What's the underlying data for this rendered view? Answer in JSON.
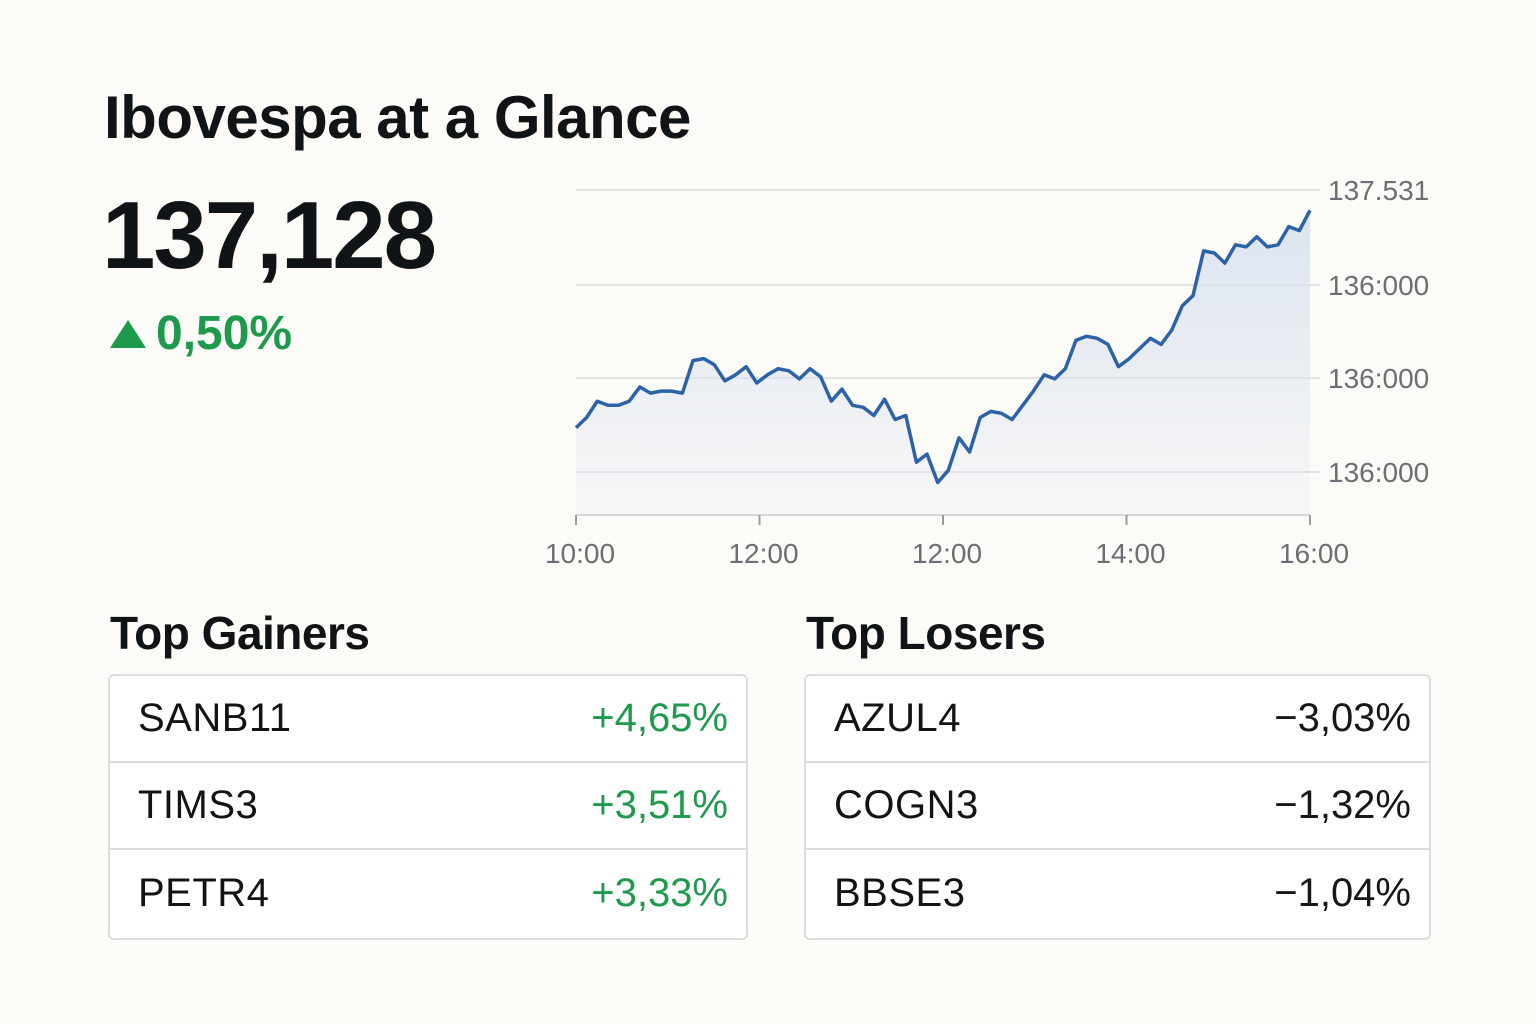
{
  "header": {
    "title": "Ibovespa at a Glance"
  },
  "summary": {
    "index_value": "137,128",
    "change": "0,50%",
    "change_icon": "triangle-up-icon",
    "change_color": "#1e9a4c"
  },
  "chart_data": {
    "type": "area",
    "title": "",
    "xlabel": "",
    "ylabel": "",
    "x_tick_labels": [
      "10:00",
      "12:00",
      "12:00",
      "14:00",
      "16:00"
    ],
    "y_tick_labels": [
      "137.531",
      "136:000",
      "136:000",
      "136:000"
    ],
    "grid": true,
    "line_color": "#2b62a8",
    "fill_color": "#dbe3ef",
    "series": [
      {
        "values": [
          34.3,
          34.8,
          35.6,
          35.4,
          35.4,
          35.6,
          36.3,
          36.0,
          36.1,
          36.1,
          36.0,
          37.6,
          37.7,
          37.4,
          36.6,
          36.9,
          37.3,
          36.5,
          36.9,
          37.2,
          37.1,
          36.7,
          37.2,
          36.8,
          35.6,
          36.2,
          35.4,
          35.3,
          34.9,
          35.7,
          34.7,
          34.9,
          32.6,
          33.0,
          31.6,
          32.2,
          33.8,
          33.1,
          34.8,
          35.1,
          35.0,
          34.7,
          35.4,
          36.1,
          36.9,
          36.7,
          37.2,
          38.6,
          38.8,
          38.7,
          38.4,
          37.3,
          37.7,
          38.2,
          38.7,
          38.4,
          39.1,
          40.3,
          40.8,
          43.0,
          42.9,
          42.4,
          43.3,
          43.2,
          43.7,
          43.2,
          43.3,
          44.2,
          44.0,
          45.0
        ]
      }
    ]
  },
  "top_gainers": {
    "title": "Top Gainers",
    "rows": [
      {
        "ticker": "SANB11",
        "change": "+4,65%"
      },
      {
        "ticker": "TIMS3",
        "change": "+3,51%"
      },
      {
        "ticker": "PETR4",
        "change": "+3,33%"
      }
    ]
  },
  "top_losers": {
    "title": "Top Losers",
    "rows": [
      {
        "ticker": "AZUL4",
        "change": "−3,03%"
      },
      {
        "ticker": "COGN3",
        "change": "−1,32%"
      },
      {
        "ticker": "BBSE3",
        "change": "−1,04%"
      }
    ]
  }
}
